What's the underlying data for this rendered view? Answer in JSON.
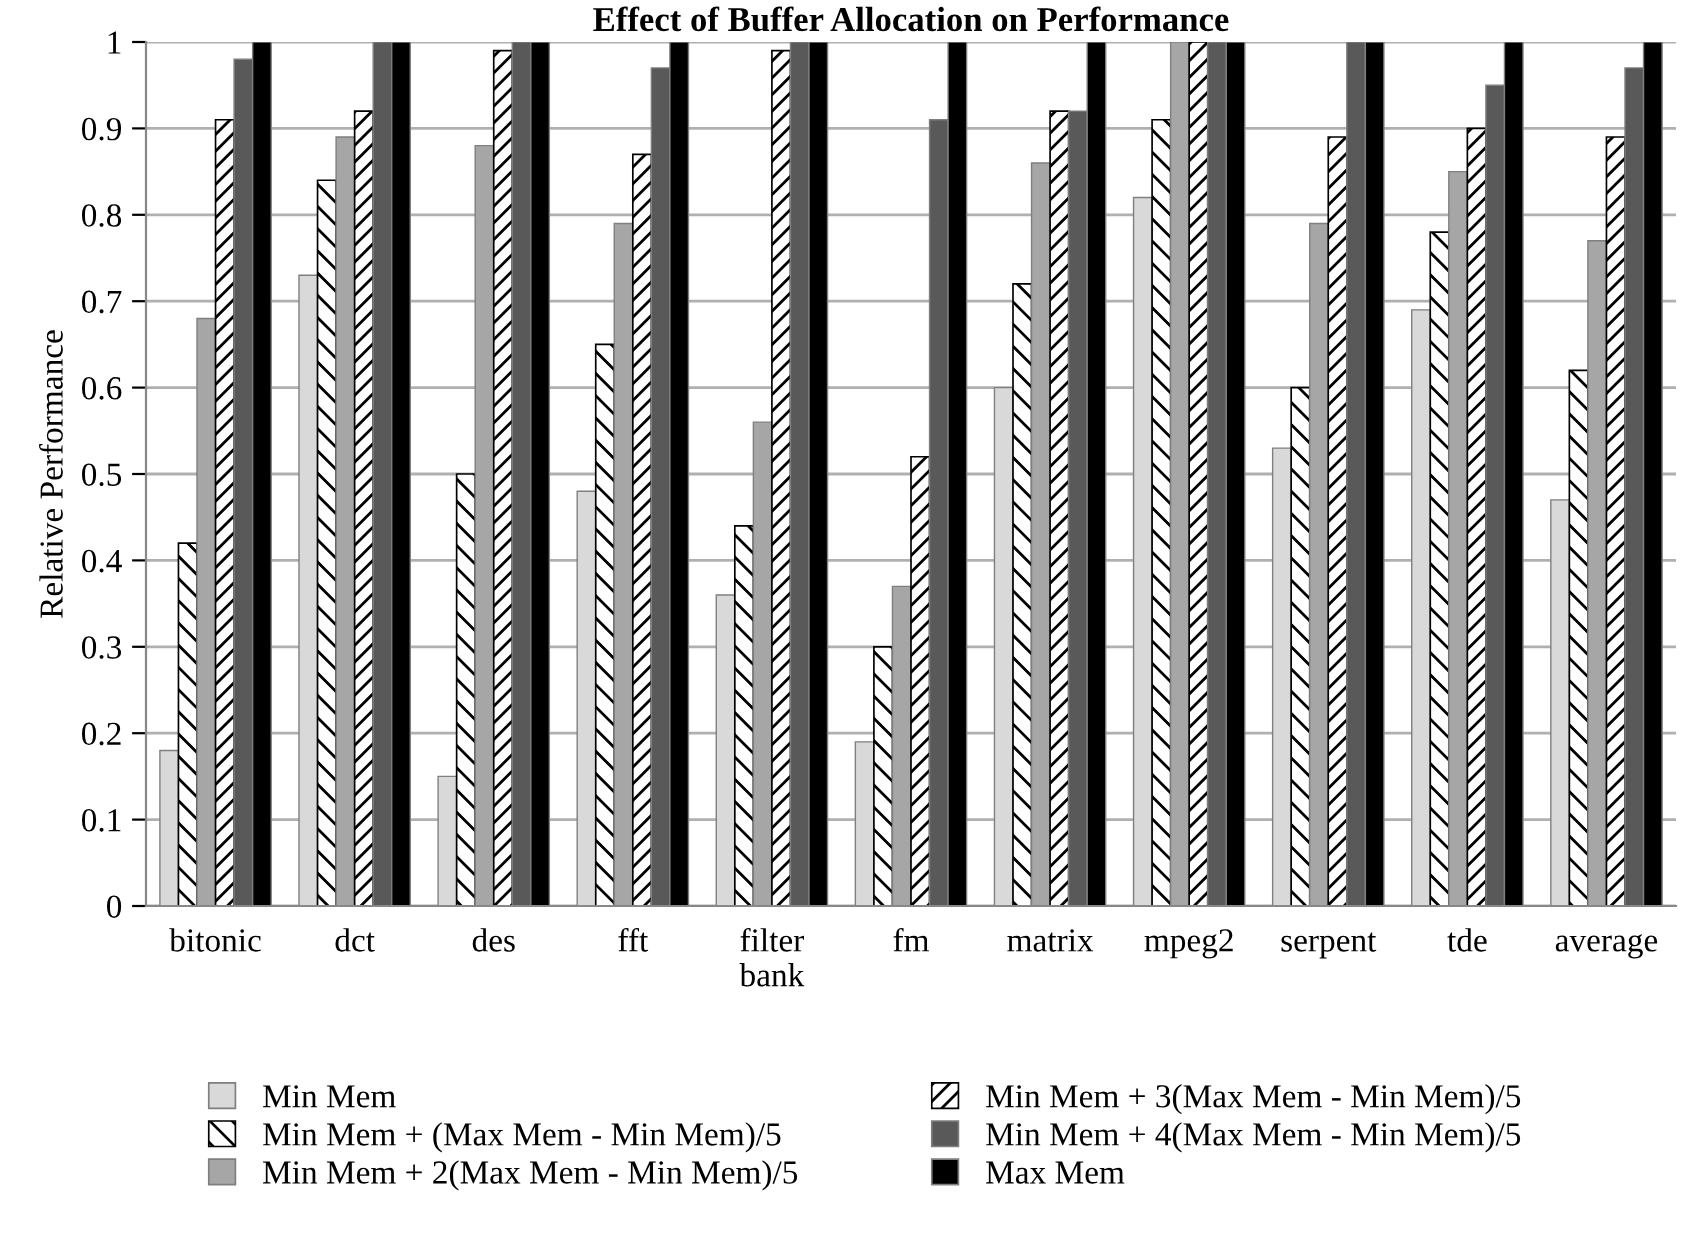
{
  "chart_data": {
    "type": "bar",
    "title": "Effect of Buffer Allocation on Performance",
    "ylabel": "Relative Performance",
    "categories": [
      "bitonic",
      "dct",
      "des",
      "fft",
      "filter\nbank",
      "fm",
      "matrix",
      "mpeg2",
      "serpent",
      "tde",
      "average"
    ],
    "series": [
      {
        "name": "Min Mem",
        "color": "#d9d9d9",
        "values": [
          0.18,
          0.73,
          0.15,
          0.48,
          0.36,
          0.19,
          0.6,
          0.82,
          0.53,
          0.69,
          0.47
        ]
      },
      {
        "name": "Min Mem + (Max Mem - Min Mem)/5",
        "color": "#000000",
        "values": [
          0.42,
          0.84,
          0.5,
          0.65,
          0.44,
          0.3,
          0.72,
          0.91,
          0.6,
          0.78,
          0.62
        ]
      },
      {
        "name": "Min Mem + 2(Max Mem - Min Mem)/5",
        "color": "#a6a6a6",
        "values": [
          0.68,
          0.89,
          0.88,
          0.79,
          0.56,
          0.37,
          0.86,
          1,
          0.79,
          0.85,
          0.77
        ]
      },
      {
        "name": "Min Mem + 3(Max Mem - Min Mem)/5",
        "color": "#000000",
        "values": [
          0.91,
          0.92,
          0.99,
          0.87,
          0.99,
          0.52,
          0.92,
          1,
          0.89,
          0.9,
          0.89
        ]
      },
      {
        "name": "Min Mem + 4(Max Mem - Min Mem)/5",
        "color": "#595959",
        "values": [
          0.98,
          1,
          1,
          0.97,
          1,
          0.91,
          0.92,
          1,
          1,
          0.95,
          0.97
        ]
      },
      {
        "name": "Max Mem",
        "color": "#000000",
        "values": [
          1,
          1,
          1,
          1,
          1,
          1,
          1,
          1,
          1,
          1,
          1
        ]
      }
    ],
    "ylim": [
      0,
      1
    ],
    "yticks": [
      0,
      0.1,
      0.2,
      0.3,
      0.4,
      0.5,
      0.6,
      0.7,
      0.8,
      0.9,
      {
        "value": 1,
        "label": "1"
      }
    ],
    "grid": "y",
    "legend": "bottom"
  }
}
